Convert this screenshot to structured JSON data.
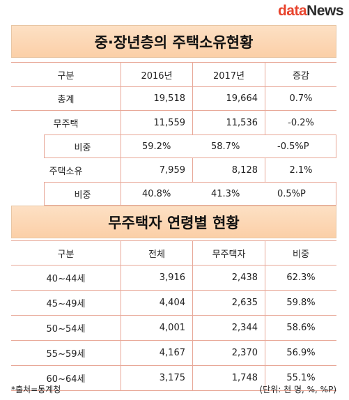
{
  "logo": {
    "part1": "data",
    "part2": "News"
  },
  "table1": {
    "title": "중·장년층의 주택소유현황",
    "headers": [
      "구분",
      "2016년",
      "2017년",
      "증감"
    ],
    "rows": [
      {
        "label": "총계",
        "v2016": "19,518",
        "v2017": "19,664",
        "change": "0.7%"
      },
      {
        "label": "무주택",
        "v2016": "11,559",
        "v2017": "11,536",
        "change": "-0.2%"
      },
      {
        "label": "비중",
        "v2016": "59.2%",
        "v2017": "58.7%",
        "change": "-0.5%P"
      },
      {
        "label": "주택소유",
        "v2016": "7,959",
        "v2017": "8,128",
        "change": "2.1%"
      },
      {
        "label": "비중",
        "v2016": "40.8%",
        "v2017": "41.3%",
        "change": "0.5%P"
      }
    ]
  },
  "table2": {
    "title": "무주택자 연령별 현황",
    "headers": [
      "구분",
      "전체",
      "무주택자",
      "비중"
    ],
    "rows": [
      {
        "label": "40~44세",
        "total": "3,916",
        "homeless": "2,438",
        "ratio": "62.3%"
      },
      {
        "label": "45~49세",
        "total": "4,404",
        "homeless": "2,635",
        "ratio": "59.8%"
      },
      {
        "label": "50~54세",
        "total": "4,001",
        "homeless": "2,344",
        "ratio": "58.6%"
      },
      {
        "label": "55~59세",
        "total": "4,167",
        "homeless": "2,370",
        "ratio": "56.9%"
      },
      {
        "label": "60~64세",
        "total": "3,175",
        "homeless": "1,748",
        "ratio": "55.1%"
      }
    ]
  },
  "footer": {
    "source": "*출처=통계청",
    "unit": "(단위: 천 명, %, %P)"
  }
}
